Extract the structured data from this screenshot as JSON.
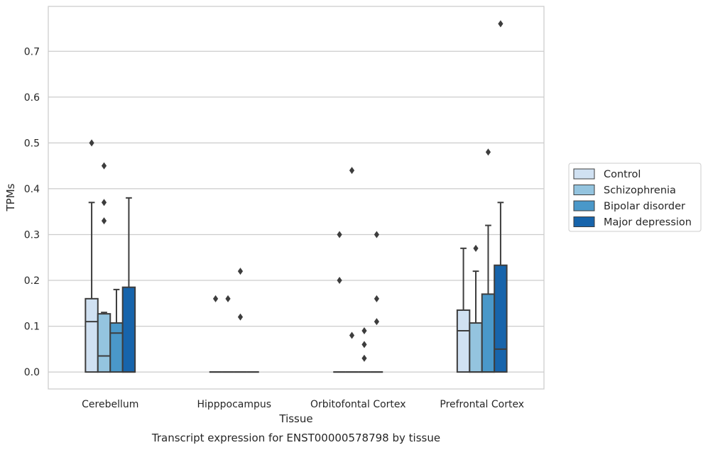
{
  "chart_data": {
    "type": "box",
    "caption": "Transcript expression for ENST00000578798 by tissue",
    "xlabel": "Tissue",
    "ylabel": "TPMs",
    "ylim": [
      -0.037,
      0.798
    ],
    "yticks": [
      "0.0",
      "0.1",
      "0.2",
      "0.3",
      "0.4",
      "0.5",
      "0.6",
      "0.7"
    ],
    "grid": "horizontal",
    "legend_position": "right",
    "categories": [
      "Cerebellum",
      "Hipppocampus",
      "Orbitofontal Cortex",
      "Prefrontal Cortex"
    ],
    "series": [
      {
        "name": "Control",
        "color": "#d0e1f2",
        "boxes": [
          {
            "q1": 0.0,
            "median": 0.11,
            "q3": 0.16,
            "whisker_low": 0.0,
            "whisker_high": 0.37,
            "outliers": [
              0.5
            ]
          },
          {
            "q1": 0.0,
            "median": 0.0,
            "q3": 0.0,
            "whisker_low": 0.0,
            "whisker_high": 0.0,
            "outliers": [
              0.16
            ]
          },
          {
            "q1": 0.0,
            "median": 0.0,
            "q3": 0.0,
            "whisker_low": 0.0,
            "whisker_high": 0.0,
            "outliers": [
              0.3,
              0.2
            ]
          },
          {
            "q1": 0.0,
            "median": 0.09,
            "q3": 0.135,
            "whisker_low": 0.0,
            "whisker_high": 0.27,
            "outliers": []
          }
        ]
      },
      {
        "name": "Schizophrenia",
        "color": "#94c4df",
        "boxes": [
          {
            "q1": 0.0,
            "median": 0.035,
            "q3": 0.127,
            "whisker_low": 0.0,
            "whisker_high": 0.13,
            "outliers": [
              0.45,
              0.37,
              0.33
            ]
          },
          {
            "q1": 0.0,
            "median": 0.0,
            "q3": 0.0,
            "whisker_low": 0.0,
            "whisker_high": 0.0,
            "outliers": [
              0.16
            ]
          },
          {
            "q1": 0.0,
            "median": 0.0,
            "q3": 0.0,
            "whisker_low": 0.0,
            "whisker_high": 0.0,
            "outliers": [
              0.44,
              0.08
            ]
          },
          {
            "q1": 0.0,
            "median": 0.0,
            "q3": 0.107,
            "whisker_low": 0.0,
            "whisker_high": 0.22,
            "outliers": [
              0.27
            ]
          }
        ]
      },
      {
        "name": "Bipolar disorder",
        "color": "#4a98c9",
        "boxes": [
          {
            "q1": 0.0,
            "median": 0.085,
            "q3": 0.107,
            "whisker_low": 0.0,
            "whisker_high": 0.18,
            "outliers": []
          },
          {
            "q1": 0.0,
            "median": 0.0,
            "q3": 0.0,
            "whisker_low": 0.0,
            "whisker_high": 0.0,
            "outliers": [
              0.22,
              0.12
            ]
          },
          {
            "q1": 0.0,
            "median": 0.0,
            "q3": 0.0,
            "whisker_low": 0.0,
            "whisker_high": 0.0,
            "outliers": [
              0.09,
              0.06,
              0.03
            ]
          },
          {
            "q1": 0.0,
            "median": 0.0,
            "q3": 0.17,
            "whisker_low": 0.0,
            "whisker_high": 0.32,
            "outliers": [
              0.48
            ]
          }
        ]
      },
      {
        "name": "Major depression",
        "color": "#1764ab",
        "boxes": [
          {
            "q1": 0.0,
            "median": 0.0,
            "q3": 0.185,
            "whisker_low": 0.0,
            "whisker_high": 0.38,
            "outliers": []
          },
          {
            "q1": 0.0,
            "median": 0.0,
            "q3": 0.0,
            "whisker_low": 0.0,
            "whisker_high": 0.0,
            "outliers": []
          },
          {
            "q1": 0.0,
            "median": 0.0,
            "q3": 0.0,
            "whisker_low": 0.0,
            "whisker_high": 0.0,
            "outliers": [
              0.3,
              0.16,
              0.11
            ]
          },
          {
            "q1": 0.0,
            "median": 0.05,
            "q3": 0.233,
            "whisker_low": 0.0,
            "whisker_high": 0.37,
            "outliers": [
              0.76
            ]
          }
        ]
      }
    ]
  }
}
